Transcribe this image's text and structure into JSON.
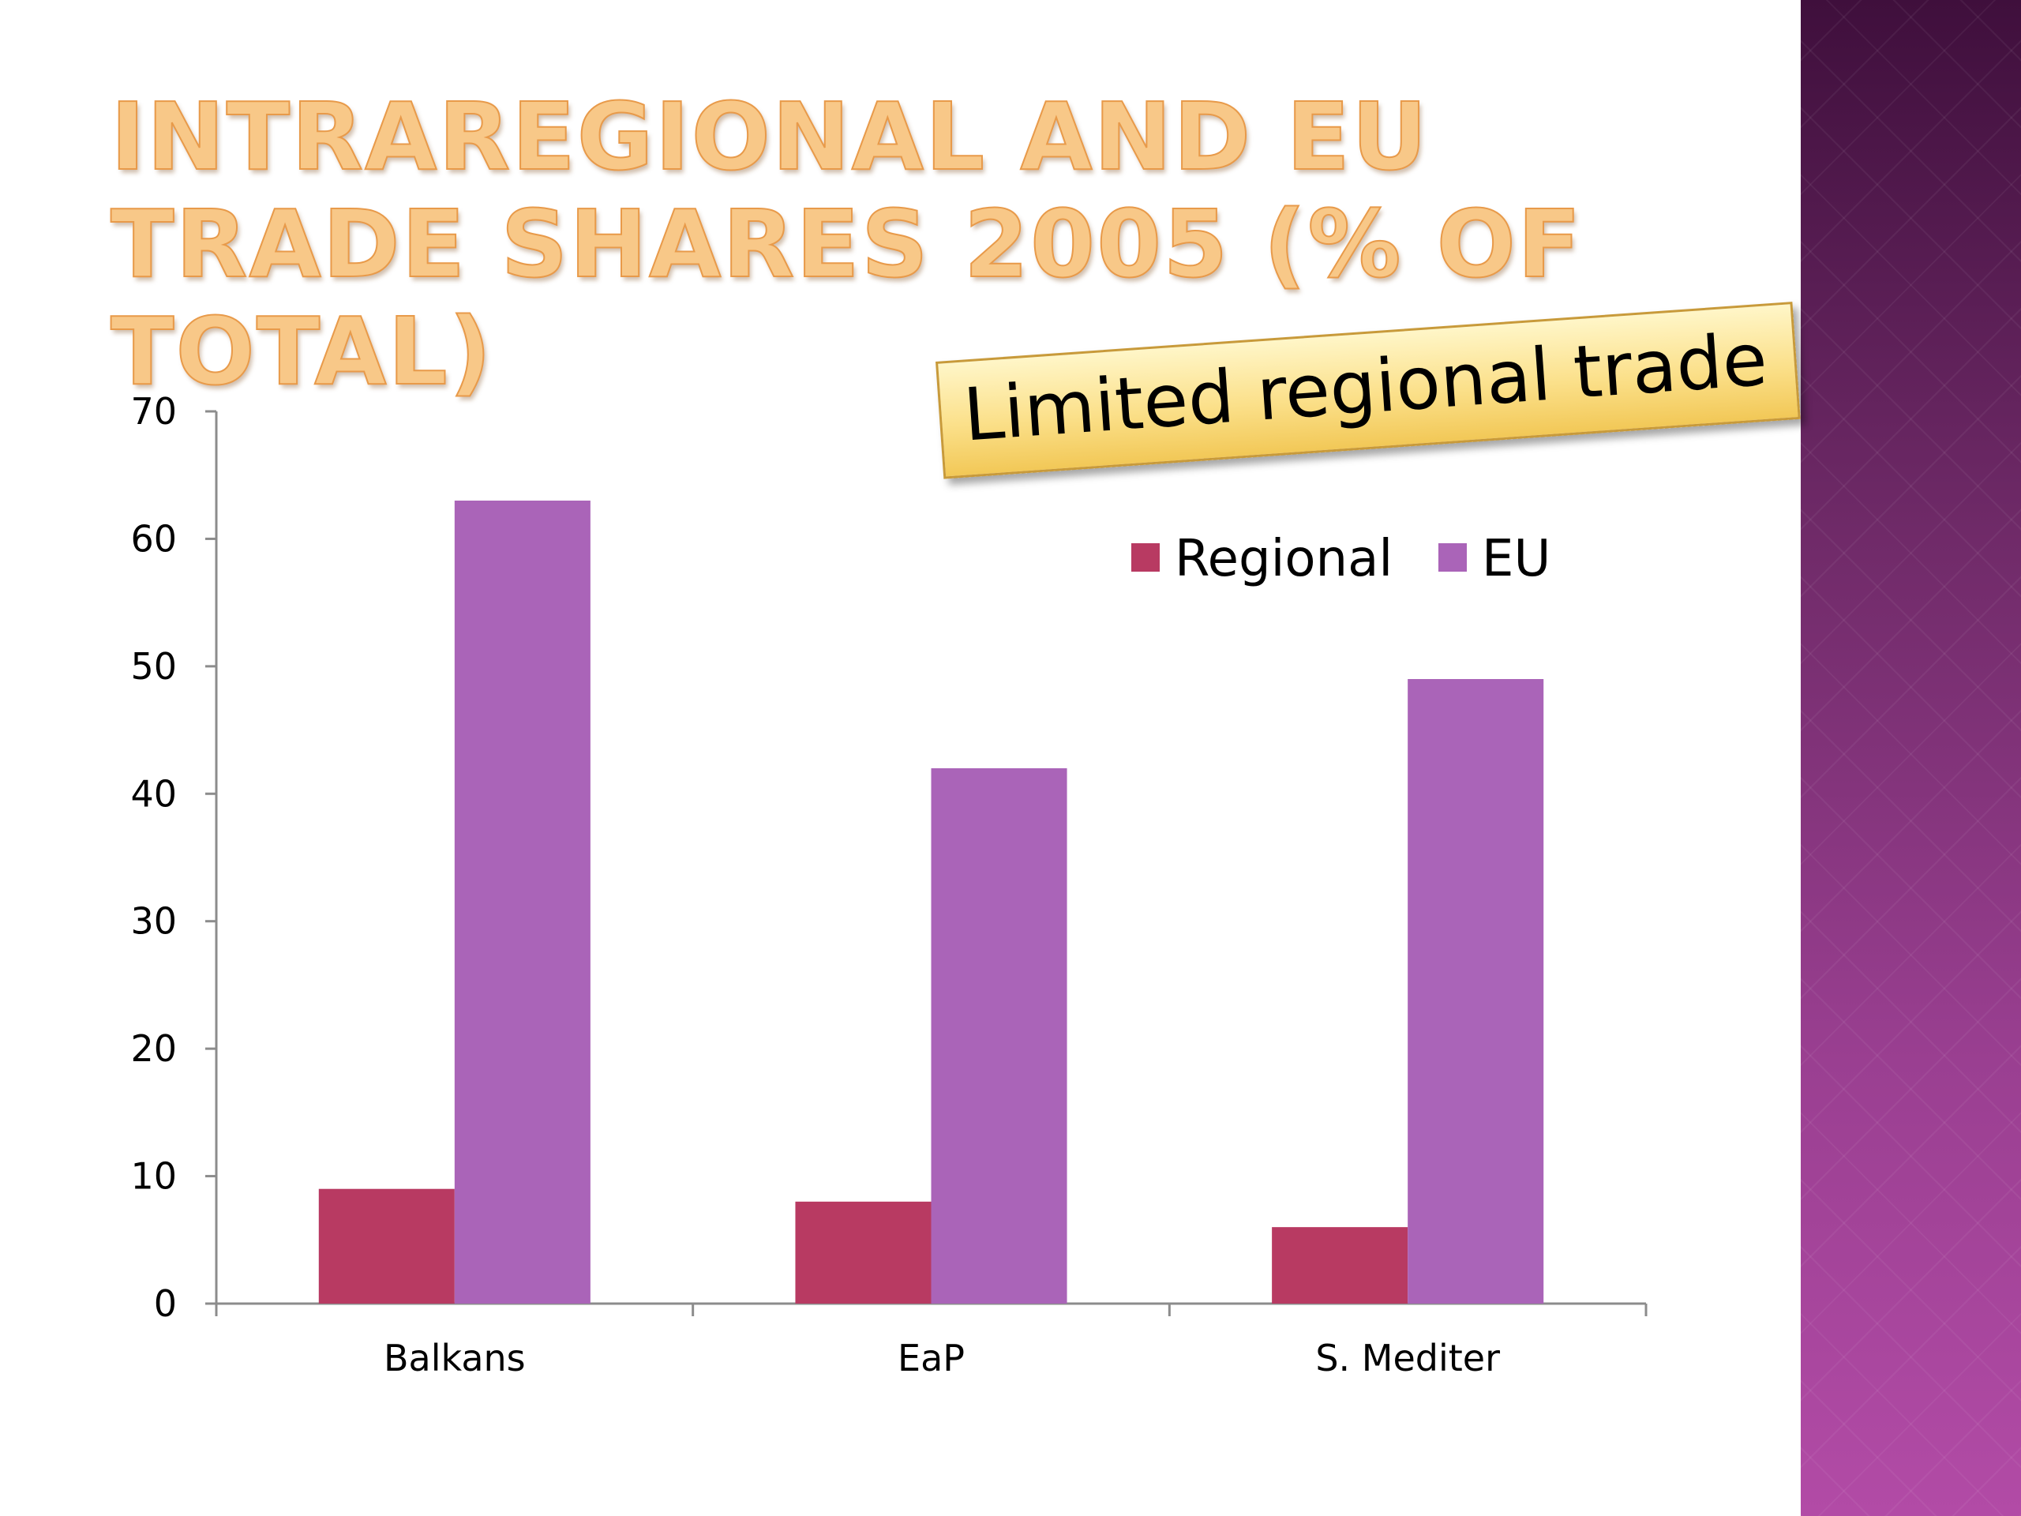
{
  "slide": {
    "title": "Intraregional and EU trade shares 2005 (% of total)",
    "callout": "Limited regional trade"
  },
  "colors": {
    "regional": "#b83a62",
    "eu": "#aa64b8",
    "axis": "#8c8c8c"
  },
  "chart_data": {
    "type": "bar",
    "title": "",
    "xlabel": "",
    "ylabel": "",
    "categories": [
      "Balkans",
      "EaP",
      "S. Mediter"
    ],
    "series": [
      {
        "name": "Regional",
        "values": [
          9,
          8,
          6
        ]
      },
      {
        "name": "EU",
        "values": [
          63,
          42,
          49
        ]
      }
    ],
    "ylim": [
      0,
      70
    ],
    "yticks": [
      0,
      10,
      20,
      30,
      40,
      50,
      60,
      70
    ],
    "grid": false,
    "legend": "top-right"
  }
}
